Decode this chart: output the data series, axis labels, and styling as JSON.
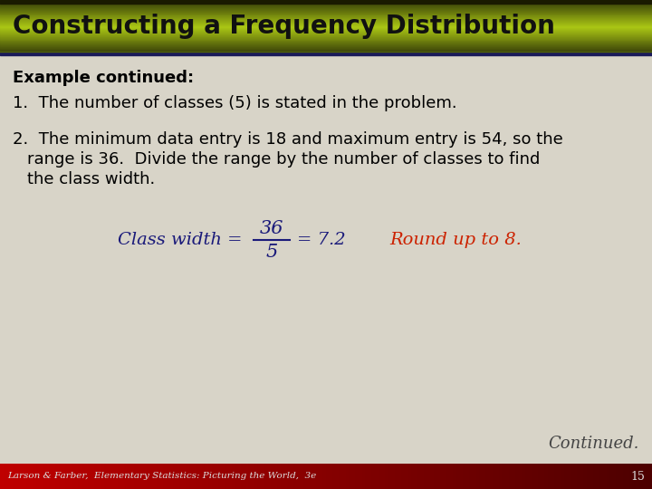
{
  "title": "Constructing a Frequency Distribution",
  "title_text_color": "#111111",
  "body_bg_color": "#d8d4c8",
  "footer_text": "Larson & Farber,  Elementary Statistics: Picturing the World,  3e",
  "footer_page": "15",
  "footer_text_color": "#dddddd",
  "example_label": "Example continued:",
  "point1": "1.  The number of classes (5) is stated in the problem.",
  "point2_line1": "2.  The minimum data entry is 18 and maximum entry is 54, so the",
  "point2_line2": "     range is 36.  Divide the range by the number of classes to find",
  "point2_line3": "     the class width.",
  "class_width_label": "Class width = ",
  "fraction_num": "36",
  "fraction_den": "5",
  "fraction_result": "= 7.2",
  "round_text": "Round up to 8.",
  "continued_text": "Continued.",
  "body_text_color": "#000000",
  "formula_color": "#1a1a7a",
  "red_text_color": "#cc2200",
  "continued_text_color": "#444444"
}
